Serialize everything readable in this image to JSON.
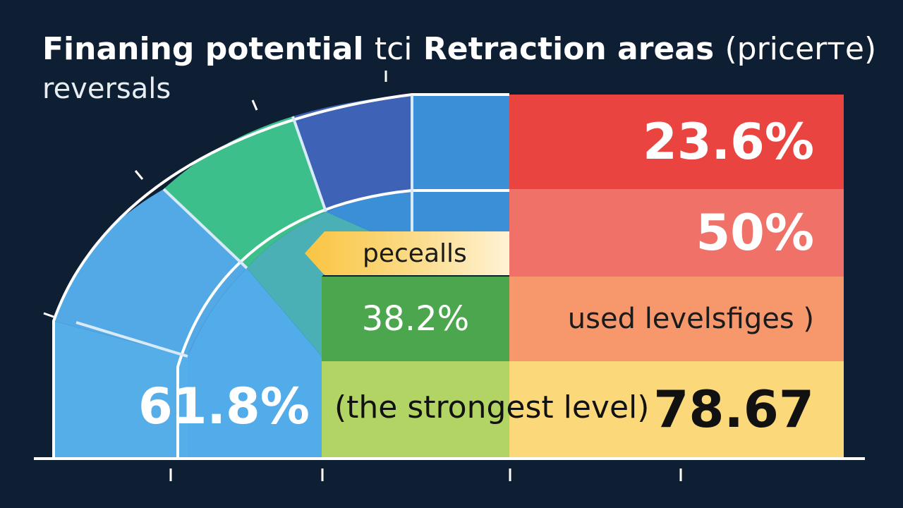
{
  "title": {
    "line1_bold": "Finaning potential",
    "line1_thin": "tci",
    "line1_bold2": "Retraction areas",
    "line1_paren": "(pricerте)",
    "line2": "reversals"
  },
  "levels": {
    "l236": "23.6%",
    "l50": "50%",
    "used": "used levelsfiges )",
    "l7867": "78.67",
    "l382": "38.2%",
    "l618": "61.8%",
    "strongest": "(the strongest level)"
  },
  "tag": {
    "label": "pecealls"
  },
  "colors": {
    "background": "#0f1f33",
    "red": "#e9443f",
    "salmon": "#f07167",
    "orange": "#f6976c",
    "yellow": "#fbd97a",
    "green": "#4ca64e",
    "lime": "#b2d465",
    "blue": "#3a8fd6",
    "light_blue": "#56aee8",
    "teal_green": "#3cbf8c"
  }
}
